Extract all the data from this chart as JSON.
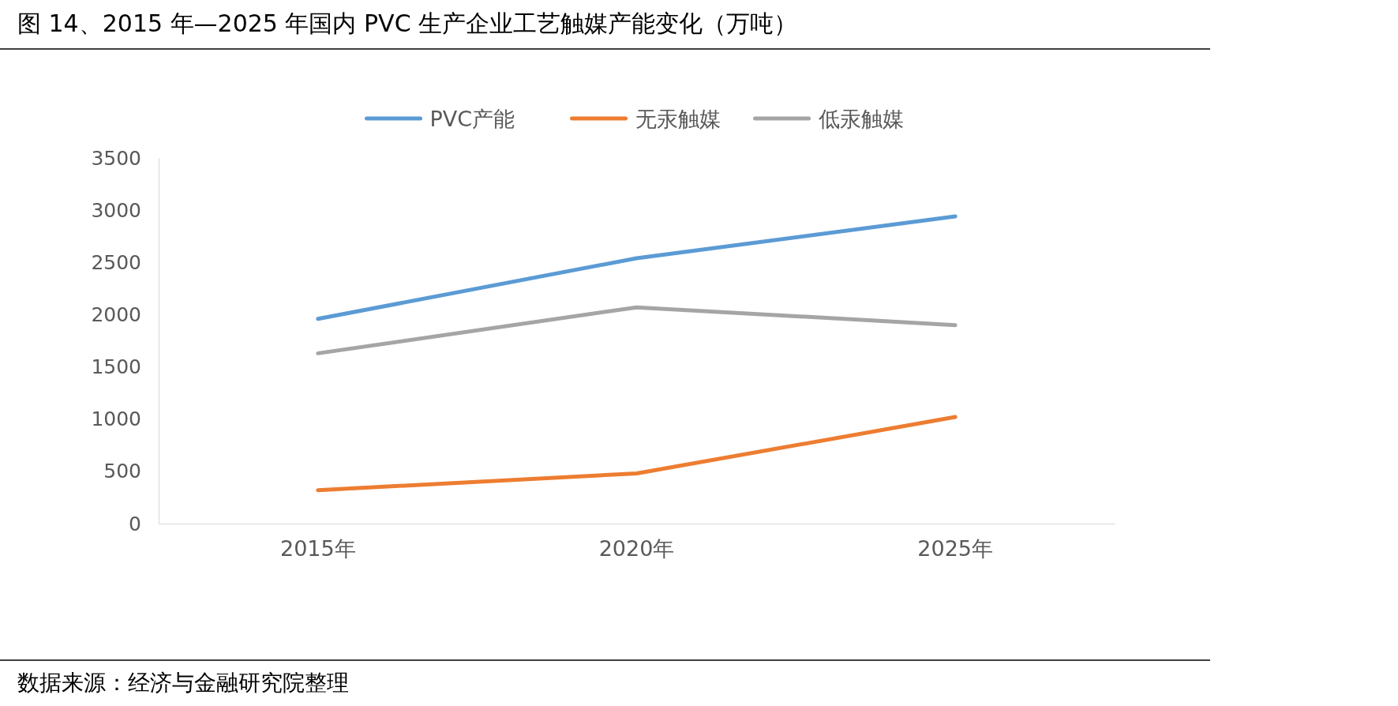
{
  "chart_data": {
    "type": "line",
    "title": "图 14、2015 年—2025 年国内 PVC 生产企业工艺触媒产能变化（万吨）",
    "categories": [
      "2015年",
      "2020年",
      "2025年"
    ],
    "series": [
      {
        "name": "PVC产能",
        "color": "#5b9bd5",
        "values": [
          1960,
          2540,
          2940
        ]
      },
      {
        "name": "无汞触媒",
        "color": "#ed7d31",
        "values": [
          320,
          480,
          1020
        ]
      },
      {
        "name": "低汞触媒",
        "color": "#a5a5a5",
        "values": [
          1630,
          2070,
          1900
        ]
      }
    ],
    "ylim": [
      0,
      3500
    ],
    "yticks": [
      0,
      500,
      1000,
      1500,
      2000,
      2500,
      3000,
      3500
    ],
    "grid": false,
    "legend": "top",
    "marker": "none",
    "line_style": "solid",
    "annotations": [
      "数据来源：经济与金融研究院整理"
    ]
  }
}
